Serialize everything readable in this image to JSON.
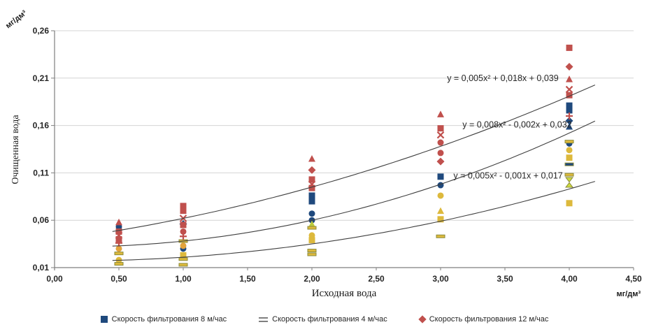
{
  "chart_data": {
    "type": "scatter",
    "title": "",
    "x_axis": {
      "label": "Исходная вода",
      "unit": "мг/дм³",
      "min": 0,
      "max": 4.5,
      "ticks": [
        {
          "value": 0.0,
          "label": "0,00"
        },
        {
          "value": 0.5,
          "label": "0,50"
        },
        {
          "value": 1.0,
          "label": "1,00"
        },
        {
          "value": 1.5,
          "label": "1,50"
        },
        {
          "value": 2.0,
          "label": "2,00"
        },
        {
          "value": 2.5,
          "label": "2,50"
        },
        {
          "value": 3.0,
          "label": "3,00"
        },
        {
          "value": 3.5,
          "label": "3,50"
        },
        {
          "value": 4.0,
          "label": "4,00"
        },
        {
          "value": 4.5,
          "label": "4,50"
        }
      ]
    },
    "y_axis": {
      "label": "Очищенная вода",
      "unit": "мг/дм³",
      "min": 0.01,
      "max": 0.26,
      "ticks": [
        {
          "value": 0.01,
          "label": "0,01"
        },
        {
          "value": 0.06,
          "label": "0,06"
        },
        {
          "value": 0.11,
          "label": "0,11"
        },
        {
          "value": 0.16,
          "label": "0,16"
        },
        {
          "value": 0.21,
          "label": "0,21"
        },
        {
          "value": 0.26,
          "label": "0,26"
        }
      ]
    },
    "grid": {
      "color": "#D4D4D4",
      "axis_color": "#7F7F7F",
      "trend_color": "#3F3F3F"
    },
    "series": [
      {
        "name": "Скорость фильтрования 8 м/час",
        "color": "#1F497D",
        "legend_marker": "square",
        "points": [
          {
            "x": 0.5,
            "y": 0.053,
            "shape": "circle"
          },
          {
            "x": 1.0,
            "y": 0.056,
            "shape": "diamond"
          },
          {
            "x": 1.0,
            "y": 0.03,
            "shape": "circle"
          },
          {
            "x": 2.0,
            "y": 0.086,
            "shape": "square"
          },
          {
            "x": 2.0,
            "y": 0.08,
            "shape": "square"
          },
          {
            "x": 2.0,
            "y": 0.067,
            "shape": "circle"
          },
          {
            "x": 2.0,
            "y": 0.06,
            "shape": "circle"
          },
          {
            "x": 3.0,
            "y": 0.106,
            "shape": "square"
          },
          {
            "x": 3.0,
            "y": 0.097,
            "shape": "circle"
          },
          {
            "x": 4.0,
            "y": 0.181,
            "shape": "square"
          },
          {
            "x": 4.0,
            "y": 0.176,
            "shape": "square"
          },
          {
            "x": 4.0,
            "y": 0.165,
            "shape": "diamond"
          },
          {
            "x": 4.0,
            "y": 0.159,
            "shape": "triangle"
          },
          {
            "x": 4.0,
            "y": 0.141,
            "shape": "circle"
          },
          {
            "x": 4.0,
            "y": 0.119,
            "shape": "dash"
          }
        ]
      },
      {
        "name": "Скорость фильтрования 4 м/час",
        "color": "#DDB93C",
        "legend_marker": "dash",
        "legend_marker_color": "#7F7F7F",
        "points": [
          {
            "x": 0.5,
            "y": 0.03,
            "shape": "circle",
            "color": "#E2A33B"
          },
          {
            "x": 0.5,
            "y": 0.025,
            "shape": "dash"
          },
          {
            "x": 0.5,
            "y": 0.018,
            "shape": "circle"
          },
          {
            "x": 0.5,
            "y": 0.014,
            "shape": "dash"
          },
          {
            "x": 1.0,
            "y": 0.038,
            "shape": "dash"
          },
          {
            "x": 1.0,
            "y": 0.033,
            "shape": "circle",
            "color": "#E2A33B"
          },
          {
            "x": 1.0,
            "y": 0.023,
            "shape": "square"
          },
          {
            "x": 1.0,
            "y": 0.019,
            "shape": "dash"
          },
          {
            "x": 1.0,
            "y": 0.013,
            "shape": "dash"
          },
          {
            "x": 2.0,
            "y": 0.056,
            "shape": "triangle",
            "color": "#BCCB3D"
          },
          {
            "x": 2.0,
            "y": 0.052,
            "shape": "dash"
          },
          {
            "x": 2.0,
            "y": 0.044,
            "shape": "circle"
          },
          {
            "x": 2.0,
            "y": 0.039,
            "shape": "square"
          },
          {
            "x": 2.0,
            "y": 0.028,
            "shape": "dash"
          },
          {
            "x": 2.0,
            "y": 0.024,
            "shape": "dash"
          },
          {
            "x": 3.0,
            "y": 0.086,
            "shape": "circle"
          },
          {
            "x": 3.0,
            "y": 0.07,
            "shape": "triangle"
          },
          {
            "x": 3.0,
            "y": 0.061,
            "shape": "square"
          },
          {
            "x": 3.0,
            "y": 0.043,
            "shape": "dash"
          },
          {
            "x": 4.0,
            "y": 0.143,
            "shape": "dash"
          },
          {
            "x": 4.0,
            "y": 0.134,
            "shape": "circle"
          },
          {
            "x": 4.0,
            "y": 0.126,
            "shape": "square"
          },
          {
            "x": 4.0,
            "y": 0.108,
            "shape": "dash"
          },
          {
            "x": 4.0,
            "y": 0.1,
            "shape": "hourglass",
            "color": "#CDDB3E"
          },
          {
            "x": 4.0,
            "y": 0.078,
            "shape": "square"
          }
        ]
      },
      {
        "name": "Скорость фильтрования 12 м/час",
        "color": "#C0504D",
        "legend_marker": "diamond",
        "points": [
          {
            "x": 0.5,
            "y": 0.058,
            "shape": "triangle"
          },
          {
            "x": 0.5,
            "y": 0.048,
            "shape": "square"
          },
          {
            "x": 0.5,
            "y": 0.044,
            "shape": "x"
          },
          {
            "x": 0.5,
            "y": 0.04,
            "shape": "square"
          },
          {
            "x": 0.5,
            "y": 0.036,
            "shape": "plus"
          },
          {
            "x": 1.0,
            "y": 0.075,
            "shape": "square"
          },
          {
            "x": 1.0,
            "y": 0.07,
            "shape": "square"
          },
          {
            "x": 1.0,
            "y": 0.062,
            "shape": "x"
          },
          {
            "x": 1.0,
            "y": 0.055,
            "shape": "square"
          },
          {
            "x": 1.0,
            "y": 0.048,
            "shape": "circle"
          },
          {
            "x": 1.0,
            "y": 0.043,
            "shape": "plus"
          },
          {
            "x": 2.0,
            "y": 0.125,
            "shape": "triangle"
          },
          {
            "x": 2.0,
            "y": 0.113,
            "shape": "diamond"
          },
          {
            "x": 2.0,
            "y": 0.103,
            "shape": "square"
          },
          {
            "x": 2.0,
            "y": 0.098,
            "shape": "x"
          },
          {
            "x": 2.0,
            "y": 0.094,
            "shape": "square"
          },
          {
            "x": 3.0,
            "y": 0.172,
            "shape": "triangle"
          },
          {
            "x": 3.0,
            "y": 0.157,
            "shape": "square"
          },
          {
            "x": 3.0,
            "y": 0.15,
            "shape": "x"
          },
          {
            "x": 3.0,
            "y": 0.142,
            "shape": "circle"
          },
          {
            "x": 3.0,
            "y": 0.131,
            "shape": "circle"
          },
          {
            "x": 3.0,
            "y": 0.122,
            "shape": "diamond"
          },
          {
            "x": 4.0,
            "y": 0.242,
            "shape": "square"
          },
          {
            "x": 4.0,
            "y": 0.222,
            "shape": "diamond"
          },
          {
            "x": 4.0,
            "y": 0.209,
            "shape": "triangle"
          },
          {
            "x": 4.0,
            "y": 0.198,
            "shape": "x"
          },
          {
            "x": 4.0,
            "y": 0.192,
            "shape": "square"
          },
          {
            "x": 4.0,
            "y": 0.17,
            "shape": "plus"
          }
        ]
      }
    ],
    "trendlines": [
      {
        "equation": "y = 0,005x² + 0,018x + 0,039",
        "coeffs": [
          0.005,
          0.018,
          0.039
        ],
        "x_range": [
          0.45,
          4.22
        ],
        "label_pos": [
          3.05,
          0.207
        ]
      },
      {
        "equation": "y = 0,008x² - 0,002x + 0,032",
        "coeffs": [
          0.008,
          -0.002,
          0.032
        ],
        "x_range": [
          0.45,
          4.22
        ],
        "label_pos": [
          3.17,
          0.158
        ]
      },
      {
        "equation": "y = 0,005x² - 0,001x + 0,017",
        "coeffs": [
          0.005,
          -0.001,
          0.017
        ],
        "x_range": [
          0.45,
          4.22
        ],
        "label_pos": [
          3.1,
          0.104
        ]
      }
    ],
    "legend_position": "bottom"
  }
}
